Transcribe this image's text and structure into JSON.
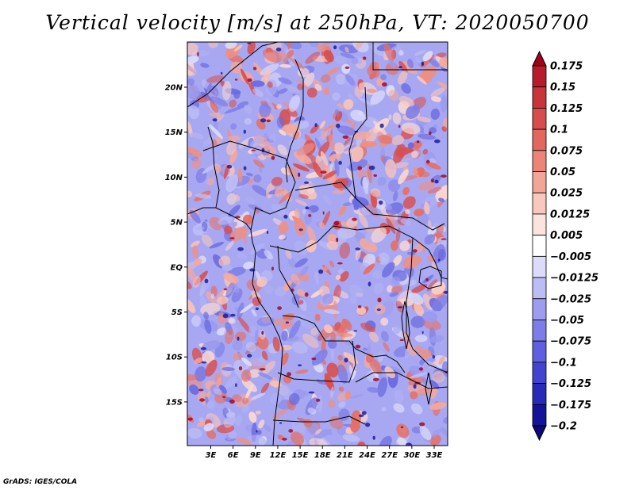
{
  "title": "Vertical velocity [m/s] at 250hPa, VT: 2020050700",
  "credit": "GrADS: IGES/COLA",
  "map": {
    "variable": "Vertical velocity",
    "units": "m/s",
    "level": "250hPa",
    "valid_time": "2020050700",
    "lat_ticks": [
      "20N",
      "15N",
      "10N",
      "5N",
      "EQ",
      "5S",
      "10S",
      "15S"
    ],
    "lon_ticks": [
      "3E",
      "6E",
      "9E",
      "12E",
      "15E",
      "18E",
      "21E",
      "24E",
      "27E",
      "30E",
      "33E"
    ]
  },
  "colorbar": {
    "labels": [
      "0.175",
      "0.15",
      "0.125",
      "0.1",
      "0.075",
      "0.05",
      "0.025",
      "0.0125",
      "0.005",
      "−0.005",
      "−0.0125",
      "−0.025",
      "−0.05",
      "−0.075",
      "−0.1",
      "−0.125",
      "−0.175",
      "−0.2"
    ],
    "colors": [
      "#a0001a",
      "#b71a2a",
      "#c8343c",
      "#d74d4d",
      "#e2675f",
      "#ec8578",
      "#f3a598",
      "#f8c7bd",
      "#fce4de",
      "#ffffff",
      "#dcdcfa",
      "#bdbdf5",
      "#9d9def",
      "#7d7de8",
      "#5f5fdf",
      "#4343d0",
      "#2a2ab8",
      "#141498",
      "#0a0a78"
    ]
  }
}
